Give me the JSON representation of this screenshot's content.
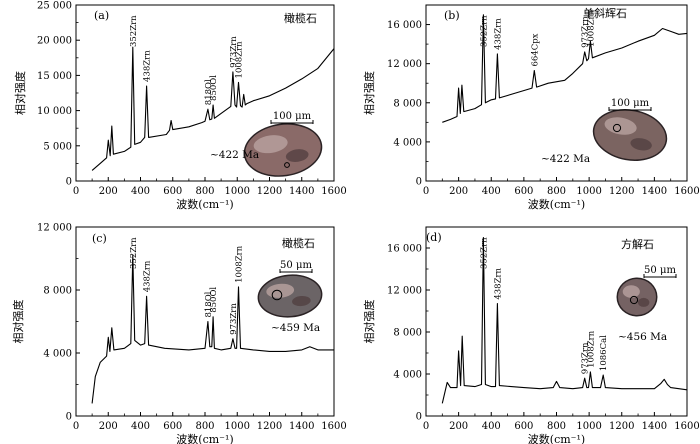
{
  "figure": {
    "x_axis_label": "波数(cm⁻¹)",
    "y_axis_label": "相对强度"
  },
  "chart_data": [
    {
      "panel": "(a)",
      "type": "line",
      "mineral": "橄榄石",
      "scale_bar": "100 μm",
      "age": "~422 Ma",
      "xlim": [
        0,
        1600
      ],
      "ylim": [
        0,
        25000
      ],
      "xticks": [
        0,
        200,
        400,
        600,
        800,
        1000,
        1200,
        1400,
        1600
      ],
      "yticks": [
        0,
        5000,
        10000,
        15000,
        20000,
        25000
      ],
      "ytick_labels": [
        "0",
        "5 000",
        "10 000",
        "15 000",
        "20 000",
        "25 000"
      ],
      "peak_labels": [
        {
          "text": "352Zrn",
          "x": 352
        },
        {
          "text": "438Zrn",
          "x": 438
        },
        {
          "text": "818Ol",
          "x": 818
        },
        {
          "text": "850Ol",
          "x": 850
        },
        {
          "text": "973Zrn",
          "x": 973
        },
        {
          "text": "1008Zrn",
          "x": 1008
        }
      ],
      "series": [
        {
          "x": [
            100,
            150,
            190,
            200,
            212,
            222,
            232,
            300,
            340,
            352,
            364,
            400,
            426,
            438,
            450,
            560,
            580,
            590,
            600,
            700,
            780,
            800,
            818,
            830,
            842,
            850,
            858,
            900,
            960,
            973,
            986,
            996,
            1008,
            1020,
            1030,
            1040,
            1050,
            1060,
            1100,
            1200,
            1300,
            1400,
            1500,
            1600
          ],
          "y": [
            1500,
            2500,
            3300,
            5800,
            3600,
            7800,
            3800,
            4200,
            4800,
            19000,
            5200,
            5500,
            6200,
            13500,
            6200,
            6600,
            7200,
            8600,
            7300,
            7700,
            8300,
            8500,
            10200,
            8700,
            8800,
            10800,
            8900,
            9600,
            10600,
            15500,
            10800,
            10500,
            14000,
            10700,
            10500,
            12300,
            10800,
            11000,
            11400,
            12100,
            13200,
            14500,
            16000,
            18800
          ]
        }
      ]
    },
    {
      "panel": "(b)",
      "type": "line",
      "mineral": "单斜辉石",
      "scale_bar": "100 μm",
      "age": "~422 Ma",
      "xlim": [
        0,
        1600
      ],
      "ylim": [
        0,
        18000
      ],
      "xticks": [
        0,
        200,
        400,
        600,
        800,
        1000,
        1200,
        1400,
        1600
      ],
      "yticks": [
        0,
        4000,
        8000,
        12000,
        16000
      ],
      "ytick_labels": [
        "0",
        "4 000",
        "8 000",
        "12 000",
        "16 000"
      ],
      "peak_labels": [
        {
          "text": "352Zrn",
          "x": 352
        },
        {
          "text": "438Zrn",
          "x": 438
        },
        {
          "text": "664Cpx",
          "x": 664
        },
        {
          "text": "973Zrn",
          "x": 973
        },
        {
          "text": "1008Zrn",
          "x": 1008
        }
      ],
      "series": [
        {
          "x": [
            100,
            150,
            190,
            200,
            210,
            220,
            232,
            300,
            340,
            352,
            364,
            400,
            426,
            438,
            450,
            550,
            650,
            664,
            678,
            750,
            850,
            900,
            960,
            973,
            986,
            996,
            1008,
            1020,
            1100,
            1200,
            1300,
            1400,
            1450,
            1500,
            1550,
            1600
          ],
          "y": [
            6000,
            6300,
            6600,
            9500,
            6900,
            9800,
            7100,
            7400,
            7800,
            17000,
            8000,
            8300,
            8400,
            13000,
            8500,
            9000,
            9500,
            11300,
            9600,
            10000,
            10300,
            11000,
            12000,
            13200,
            12300,
            12500,
            14300,
            12600,
            13100,
            13600,
            14300,
            14900,
            15600,
            15300,
            15000,
            15100
          ]
        }
      ]
    },
    {
      "panel": "(c)",
      "type": "line",
      "mineral": "橄榄石",
      "scale_bar": "50 μm",
      "age": "~459 Ma",
      "xlim": [
        0,
        1600
      ],
      "ylim": [
        0,
        12000
      ],
      "xticks": [
        0,
        200,
        400,
        600,
        800,
        1000,
        1200,
        1400,
        1600
      ],
      "yticks": [
        0,
        4000,
        8000,
        12000
      ],
      "ytick_labels": [
        "0",
        "4 000",
        "8 000",
        "12 000"
      ],
      "peak_labels": [
        {
          "text": "352Zrn",
          "x": 352
        },
        {
          "text": "438Zrn",
          "x": 438
        },
        {
          "text": "818Ol",
          "x": 818
        },
        {
          "text": "850Ol",
          "x": 850
        },
        {
          "text": "973Zrn",
          "x": 973
        },
        {
          "text": "1008Zrn",
          "x": 1008
        }
      ],
      "series": [
        {
          "x": [
            100,
            120,
            150,
            190,
            200,
            210,
            222,
            235,
            300,
            340,
            352,
            364,
            400,
            426,
            438,
            450,
            550,
            700,
            800,
            818,
            830,
            842,
            850,
            858,
            900,
            960,
            973,
            986,
            996,
            1008,
            1020,
            1100,
            1200,
            1300,
            1400,
            1450,
            1500,
            1600
          ],
          "y": [
            800,
            2500,
            3400,
            3800,
            5000,
            4100,
            5600,
            4200,
            4300,
            4600,
            10200,
            4800,
            4500,
            4600,
            7600,
            4500,
            4300,
            4200,
            4300,
            6000,
            4400,
            4400,
            6300,
            4300,
            4200,
            4300,
            4900,
            4300,
            4300,
            8200,
            4300,
            4200,
            4100,
            4100,
            4200,
            4400,
            4200,
            4200
          ]
        }
      ]
    },
    {
      "panel": "(d)",
      "type": "line",
      "mineral": "方解石",
      "scale_bar": "50 μm",
      "age": "~456 Ma",
      "xlim": [
        0,
        1600
      ],
      "ylim": [
        0,
        18000
      ],
      "xticks": [
        0,
        200,
        400,
        600,
        800,
        1000,
        1200,
        1400,
        1600
      ],
      "yticks": [
        0,
        4000,
        8000,
        12000,
        16000
      ],
      "ytick_labels": [
        "0",
        "4 000",
        "8 000",
        "12 000",
        "16 000"
      ],
      "peak_labels": [
        {
          "text": "352Zrn",
          "x": 352
        },
        {
          "text": "438Zrn",
          "x": 438
        },
        {
          "text": "973Zrn",
          "x": 973
        },
        {
          "text": "1008Zrn",
          "x": 1008
        },
        {
          "text": "1086Cal",
          "x": 1086
        }
      ],
      "series": [
        {
          "x": [
            100,
            130,
            150,
            190,
            200,
            212,
            222,
            234,
            300,
            340,
            352,
            364,
            400,
            426,
            438,
            450,
            600,
            700,
            780,
            800,
            820,
            900,
            960,
            973,
            986,
            996,
            1008,
            1020,
            1070,
            1086,
            1100,
            1200,
            1300,
            1400,
            1440,
            1460,
            1480,
            1500,
            1600
          ],
          "y": [
            1200,
            3200,
            2700,
            2700,
            6200,
            2900,
            7600,
            2900,
            2800,
            3000,
            17000,
            3000,
            2800,
            2800,
            10700,
            2900,
            2700,
            2600,
            2700,
            3300,
            2700,
            2600,
            2700,
            3600,
            2700,
            2700,
            4200,
            2700,
            2700,
            3900,
            2700,
            2600,
            2600,
            2600,
            3100,
            3500,
            3000,
            2700,
            2500
          ]
        }
      ]
    }
  ]
}
